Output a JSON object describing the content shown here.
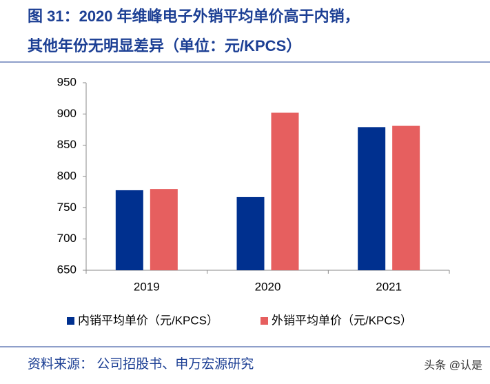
{
  "chart_data": {
    "type": "bar",
    "title": [
      "图 31：2020 年维峰电子外销平均单价高于内销，",
      "其他年份无明显差异（单位：元/KPCS）"
    ],
    "categories": [
      "2019",
      "2020",
      "2021"
    ],
    "series": [
      {
        "name": "内销平均单价（元/KPCS）",
        "color": "#00308f",
        "values": [
          778,
          767,
          879
        ]
      },
      {
        "name": "外销平均单价（元/KPCS）",
        "color": "#e65f5f",
        "values": [
          780,
          902,
          881
        ]
      }
    ],
    "ylim": [
      650,
      950
    ],
    "yticks": [
      650,
      700,
      750,
      800,
      850,
      900,
      950
    ],
    "source": "资料来源： 公司招股书、申万宏源研究",
    "watermark": "头条 @认是"
  }
}
